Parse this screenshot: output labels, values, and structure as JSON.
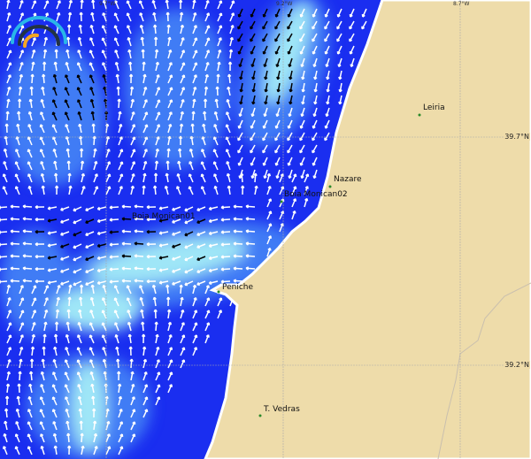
{
  "map": {
    "colors": {
      "sea_deep": "#1a2ef0",
      "sea_mid": "#3f7cf5",
      "sea_light": "#9fe6f7",
      "land": "#eedcaa",
      "arrow_light": "#ffffff",
      "arrow_strong": "#000000"
    },
    "grid_labels": {
      "lon": [
        "9.7°W",
        "9.2°W",
        "8.7°W"
      ],
      "lat": [
        "39.7°N",
        "39.2°N"
      ]
    },
    "places": [
      {
        "name": "Leiria"
      },
      {
        "name": "Nazare"
      },
      {
        "name": "Boia Monican02"
      },
      {
        "name": "Boia Monican01"
      },
      {
        "name": "Peniche"
      },
      {
        "name": "T. Vedras"
      }
    ],
    "logo": {
      "icon": "gauge-logo-icon"
    }
  }
}
